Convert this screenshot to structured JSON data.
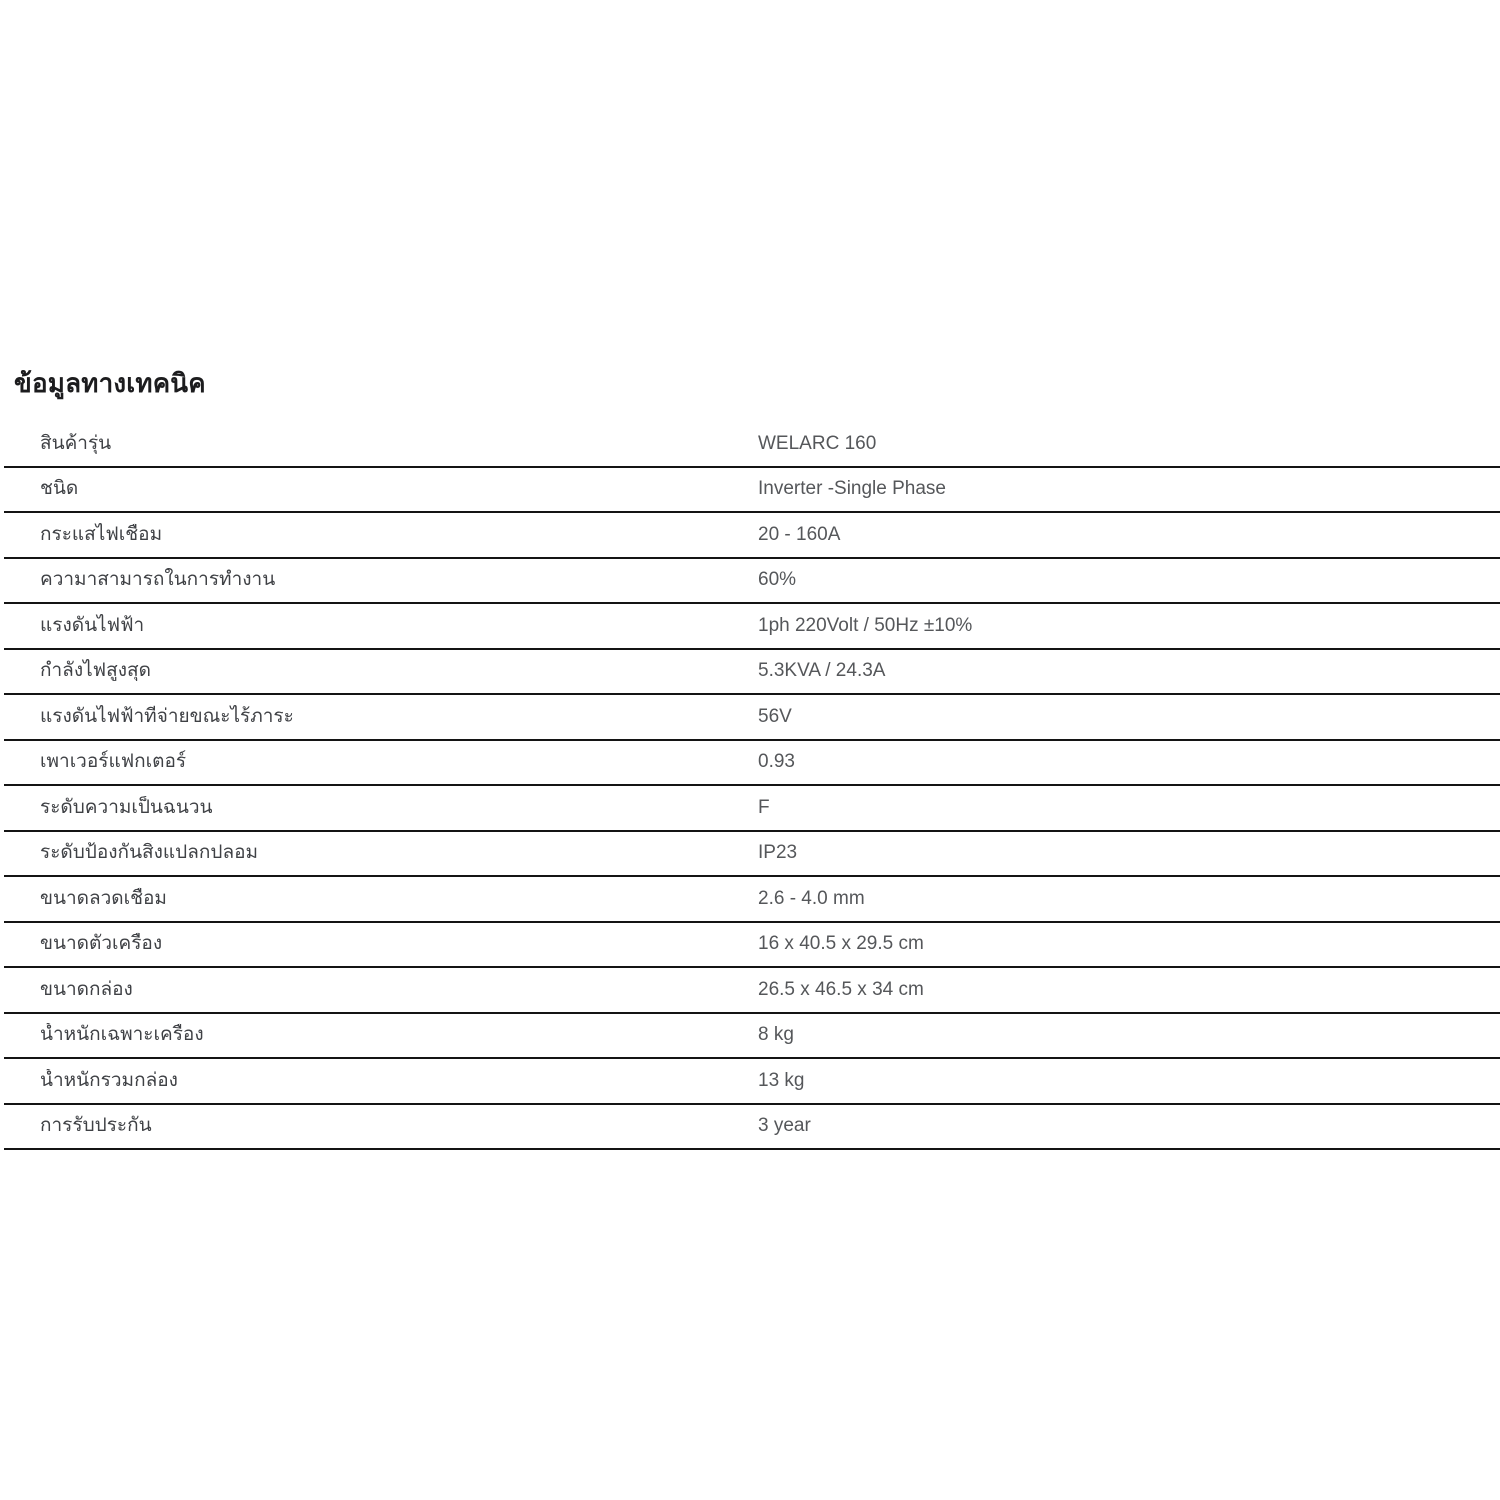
{
  "header": {
    "title": "ข้อมูลทางเทคนิค"
  },
  "table": {
    "rows": [
      {
        "label": "สินค้ารุ่น",
        "value": "WELARC 160"
      },
      {
        "label": "ชนิด",
        "value": "Inverter -Single Phase"
      },
      {
        "label": "กระแสไฟเชื่อม",
        "value": "20 - 160A"
      },
      {
        "label": "ความาสามารถในการทำงาน",
        "value": "60%"
      },
      {
        "label": "แรงดันไฟฟ้า",
        "value": "1ph 220Volt / 50Hz ±10%"
      },
      {
        "label": "กำลังไฟสูงสุด",
        "value": "5.3KVA / 24.3A"
      },
      {
        "label": "แรงดันไฟฟ้าที่จ่ายขณะไร้ภาระ",
        "value": "56V"
      },
      {
        "label": "เพาเวอร์แฟกเตอร์",
        "value": "0.93"
      },
      {
        "label": "ระดับความเป็นฉนวน",
        "value": "F"
      },
      {
        "label": "ระดับป้องกันสิ่งแปลกปลอม",
        "value": "IP23"
      },
      {
        "label": "ขนาดลวดเชื่อม",
        "value": "2.6 - 4.0 mm"
      },
      {
        "label": "ขนาดตัวเครื่อง",
        "value": "16 x 40.5 x 29.5 cm"
      },
      {
        "label": "ขนาดกล่อง",
        "value": "26.5 x 46.5 x 34 cm"
      },
      {
        "label": "น้ำหนักเฉพาะเครื่อง",
        "value": "8 kg"
      },
      {
        "label": "น้ำหนักรวมกล่อง",
        "value": "13 kg"
      },
      {
        "label": "การรับประกัน",
        "value": "3 year"
      }
    ]
  },
  "colors": {
    "background": "#ffffff",
    "title_text": "#1c1c1e",
    "label_text": "#3f4145",
    "value_text": "#55575a",
    "row_border": "#141414"
  }
}
